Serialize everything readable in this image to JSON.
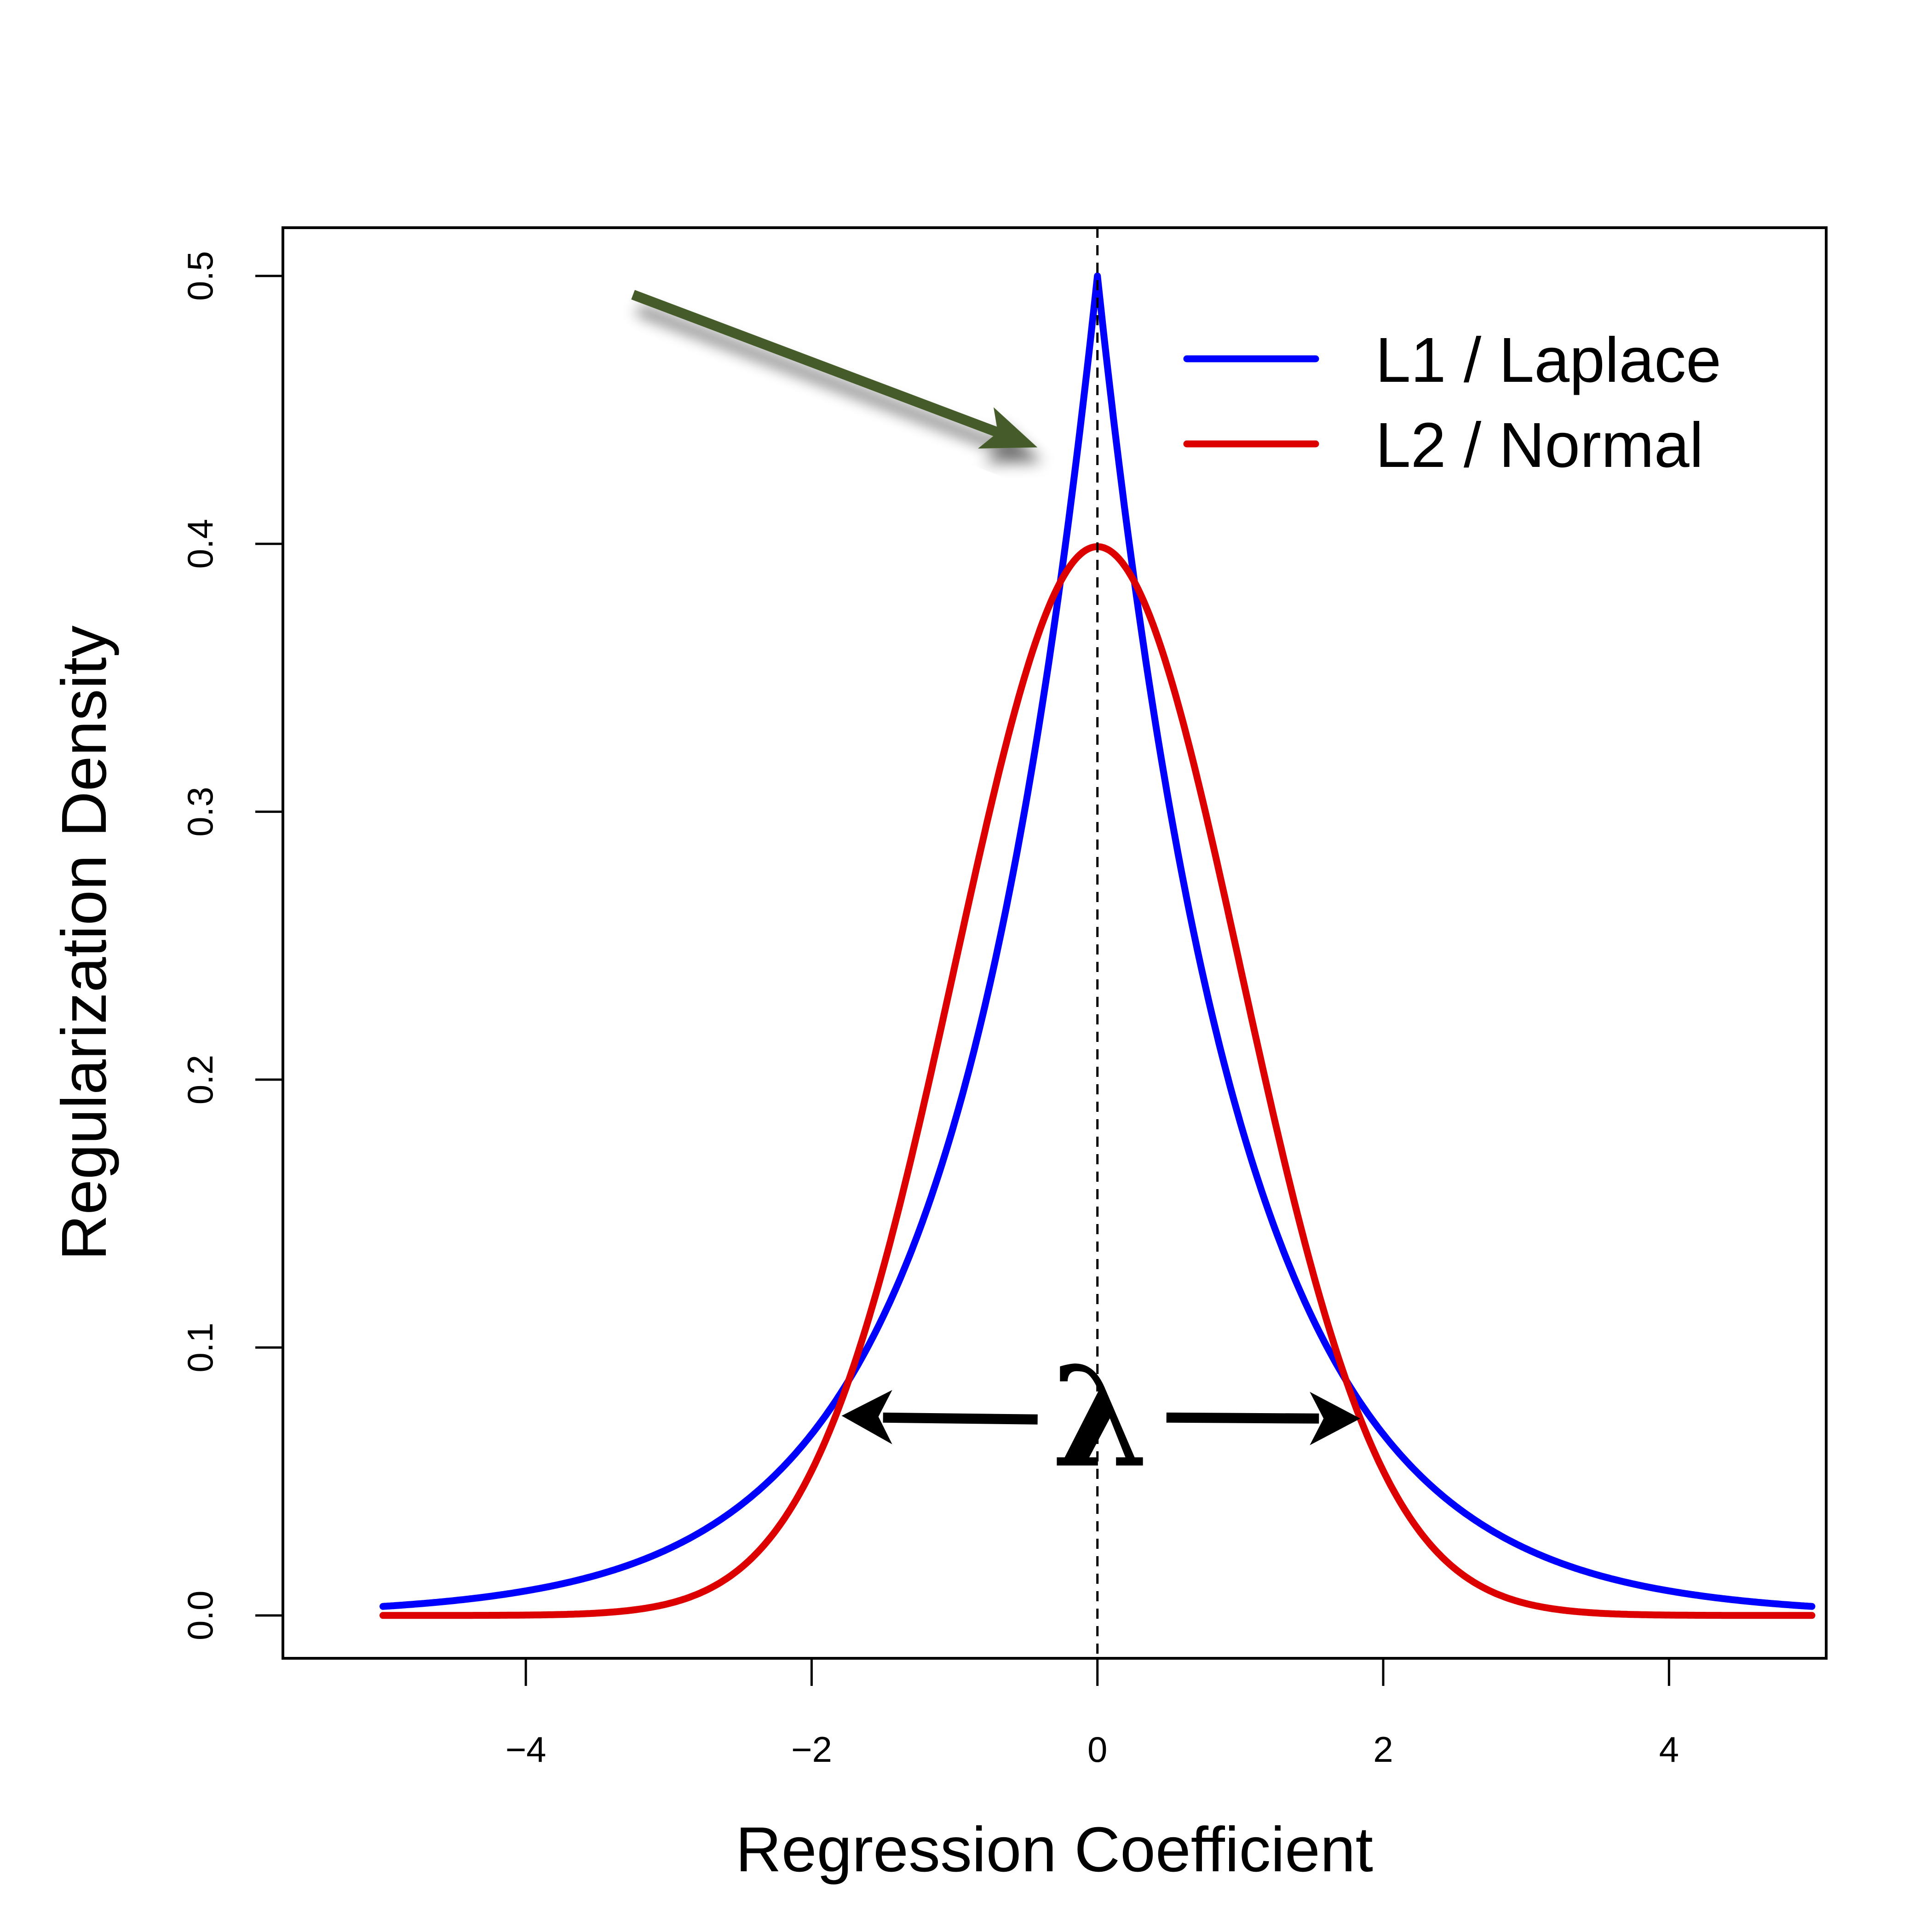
{
  "chart_data": {
    "type": "line",
    "title": "",
    "xlabel": "Regression Coefficient",
    "ylabel": "Regularization Density",
    "xlim": [
      -5.7,
      5.1
    ],
    "ylim": [
      -0.016,
      0.518
    ],
    "x_ticks": [
      -4,
      -2,
      0,
      2,
      4
    ],
    "x_tick_labels": [
      "−4",
      "−2",
      "0",
      "2",
      "4"
    ],
    "y_ticks": [
      0.0,
      0.1,
      0.2,
      0.3,
      0.4,
      0.5
    ],
    "y_tick_labels": [
      "0.0",
      "0.1",
      "0.2",
      "0.3",
      "0.4",
      "0.5"
    ],
    "grid": false,
    "legend_position": "top-right",
    "x_range": [
      -5,
      5
    ],
    "series": [
      {
        "name": "L1 / Laplace",
        "color": "#0000ff",
        "x": [
          -5,
          -4.5,
          -4,
          -3.5,
          -3,
          -2.5,
          -2,
          -1.5,
          -1,
          -0.5,
          0,
          0.5,
          1,
          1.5,
          2,
          2.5,
          3,
          3.5,
          4,
          4.5,
          5
        ],
        "y": [
          0.0034,
          0.0056,
          0.0092,
          0.0151,
          0.0249,
          0.041,
          0.0677,
          0.1116,
          0.1839,
          0.3033,
          0.5,
          0.3033,
          0.1839,
          0.1116,
          0.0677,
          0.041,
          0.0249,
          0.0151,
          0.0092,
          0.0056,
          0.0034
        ]
      },
      {
        "name": "L2 / Normal",
        "color": "#dd0000",
        "x": [
          -5,
          -4.5,
          -4,
          -3.5,
          -3,
          -2.5,
          -2,
          -1.5,
          -1,
          -0.5,
          0,
          0.5,
          1,
          1.5,
          2,
          2.5,
          3,
          3.5,
          4,
          4.5,
          5
        ],
        "y": [
          0.0,
          0.0,
          0.0001,
          0.0009,
          0.0044,
          0.0175,
          0.054,
          0.1295,
          0.242,
          0.3521,
          0.3989,
          0.3521,
          0.242,
          0.1295,
          0.054,
          0.0175,
          0.0044,
          0.0009,
          0.0001,
          0.0,
          0.0
        ]
      }
    ],
    "reference_line": {
      "x": 0,
      "style": "dashed"
    },
    "annotations": [
      {
        "type": "arrow",
        "color": "#455c2a",
        "from": [
          -3.25,
          0.493
        ],
        "to": [
          -0.42,
          0.436
        ]
      },
      {
        "type": "double-arrow",
        "color": "#000000",
        "y": 0.0735,
        "left": -1.79,
        "right": 1.84
      },
      {
        "type": "text",
        "text": "λ",
        "x": 0.02,
        "y": 0.074
      }
    ]
  }
}
